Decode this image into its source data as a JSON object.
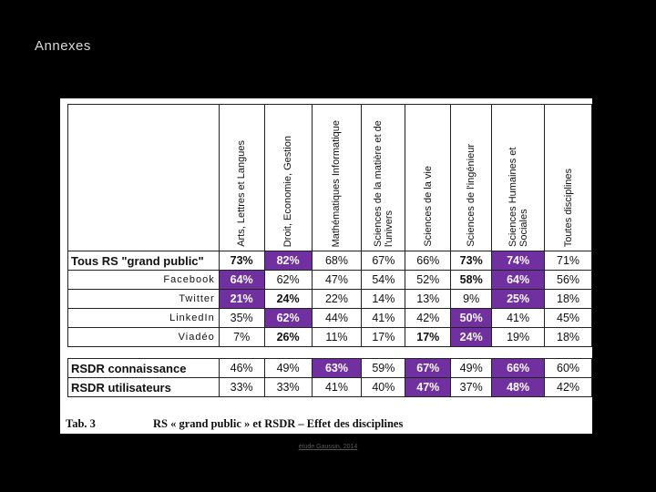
{
  "slide": {
    "title": "Annexes",
    "credit": "étude Gaussin, 2014"
  },
  "table": {
    "columns": [
      "Arts, Lettres et Langues",
      "Droit, Economie, Gestion",
      "Mathématiques Informatique",
      "Sciences de la matière et de l'univers",
      "Sciences de la vie",
      "Sciences de l'ingénieur",
      "Sciences Humaines et Sociales",
      "Toutes disciplines"
    ],
    "group1": [
      {
        "label": "Tous RS \"grand public\"",
        "style": "main",
        "values": [
          "73%",
          "82%",
          "68%",
          "67%",
          "66%",
          "73%",
          "74%",
          "71%"
        ],
        "highlight": [
          false,
          true,
          false,
          false,
          false,
          false,
          true,
          false
        ],
        "bold": [
          true,
          true,
          false,
          false,
          false,
          true,
          true,
          false
        ]
      },
      {
        "label": "Facebook",
        "style": "sub",
        "values": [
          "64%",
          "62%",
          "47%",
          "54%",
          "52%",
          "58%",
          "64%",
          "56%"
        ],
        "highlight": [
          true,
          false,
          false,
          false,
          false,
          false,
          true,
          false
        ],
        "bold": [
          true,
          false,
          false,
          false,
          false,
          true,
          true,
          false
        ]
      },
      {
        "label": "Twitter",
        "style": "sub",
        "values": [
          "21%",
          "24%",
          "22%",
          "14%",
          "13%",
          "9%",
          "25%",
          "18%"
        ],
        "highlight": [
          true,
          false,
          false,
          false,
          false,
          false,
          true,
          false
        ],
        "bold": [
          true,
          true,
          false,
          false,
          false,
          false,
          true,
          false
        ]
      },
      {
        "label": "LinkedIn",
        "style": "sub",
        "values": [
          "35%",
          "62%",
          "44%",
          "41%",
          "42%",
          "50%",
          "41%",
          "45%"
        ],
        "highlight": [
          false,
          true,
          false,
          false,
          false,
          true,
          false,
          false
        ],
        "bold": [
          false,
          true,
          false,
          false,
          false,
          true,
          false,
          false
        ]
      },
      {
        "label": "Viadéo",
        "style": "sub",
        "values": [
          "7%",
          "26%",
          "11%",
          "17%",
          "17%",
          "24%",
          "19%",
          "18%"
        ],
        "highlight": [
          false,
          false,
          false,
          false,
          false,
          true,
          false,
          false
        ],
        "bold": [
          false,
          true,
          false,
          false,
          true,
          true,
          false,
          false
        ]
      }
    ],
    "group2": [
      {
        "label": "RSDR connaissance",
        "style": "main",
        "values": [
          "46%",
          "49%",
          "63%",
          "59%",
          "67%",
          "49%",
          "66%",
          "60%"
        ],
        "highlight": [
          false,
          false,
          true,
          false,
          true,
          false,
          true,
          false
        ],
        "bold": [
          false,
          false,
          true,
          false,
          true,
          false,
          true,
          false
        ]
      },
      {
        "label": "RSDR utilisateurs",
        "style": "main",
        "values": [
          "33%",
          "33%",
          "41%",
          "40%",
          "47%",
          "37%",
          "48%",
          "42%"
        ],
        "highlight": [
          false,
          false,
          false,
          false,
          true,
          false,
          true,
          false
        ],
        "bold": [
          false,
          false,
          false,
          false,
          true,
          false,
          true,
          false
        ]
      }
    ]
  },
  "caption": {
    "label": "Tab. 3",
    "text": "RS « grand public » et RSDR – Effet des disciplines"
  },
  "colors": {
    "highlight": "#7030a0",
    "background": "#000000"
  }
}
